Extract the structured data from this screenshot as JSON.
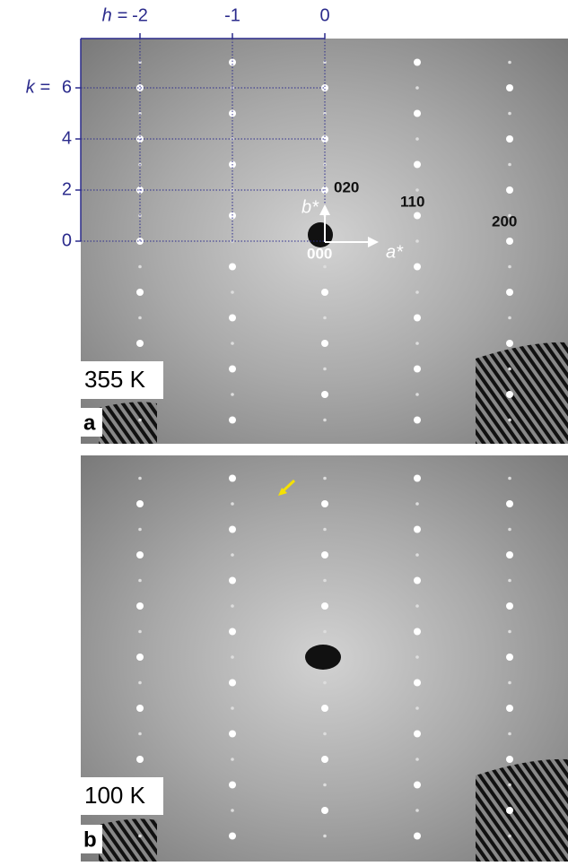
{
  "panels": [
    {
      "letter": "a",
      "temperature": "355 K",
      "h_axis": {
        "label": "h =",
        "ticks": [
          -2,
          -1,
          0
        ]
      },
      "k_axis": {
        "label": "k =",
        "ticks": [
          0,
          2,
          4,
          6
        ]
      },
      "spot_labels": [
        "020",
        "110",
        "200",
        "000"
      ],
      "vectors": [
        "b*",
        "a*"
      ]
    },
    {
      "letter": "b",
      "temperature": "100 K"
    }
  ]
}
